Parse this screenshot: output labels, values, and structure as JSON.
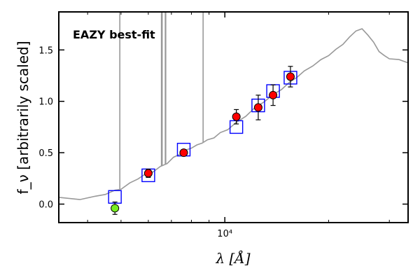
{
  "chart_data": {
    "type": "scatter",
    "title": "",
    "annotation": "EAZY best-fit",
    "annotation_color": "#ff0000",
    "xlabel": "λ [Å]",
    "ylabel": "f_ν [arbitrarily scaled]",
    "xscale": "log",
    "xlim": [
      3300,
      34000
    ],
    "ylim": [
      -0.18,
      1.87
    ],
    "yticks": [
      0.0,
      0.5,
      1.0,
      1.5
    ],
    "ytick_labels": [
      "0.0",
      "0.5",
      "1.0",
      "1.5"
    ],
    "xtick_major": [
      10000
    ],
    "xtick_major_labels": [
      "10⁴"
    ],
    "xtick_minor": [
      4000,
      5000,
      6000,
      7000,
      8000,
      9000,
      20000,
      30000
    ],
    "series": [
      {
        "name": "EAZY template SED",
        "kind": "line",
        "color": "#999999",
        "x": [
          3300,
          3800,
          4200,
          4500,
          4800,
          5000,
          5300,
          5600,
          5900,
          6200,
          6500,
          6800,
          7100,
          7400,
          7700,
          8000,
          8300,
          8600,
          8900,
          9300,
          9700,
          10200,
          10800,
          11500,
          12200,
          13000,
          13800,
          14600,
          15400,
          16200,
          17000,
          18000,
          19000,
          20000,
          21000,
          22000,
          23000,
          24000,
          25000,
          26000,
          27000,
          28000,
          29000,
          30000,
          32000,
          34000
        ],
        "y": [
          0.06,
          0.05,
          0.07,
          0.1,
          0.13,
          0.15,
          0.2,
          0.25,
          0.29,
          0.32,
          0.36,
          0.4,
          0.45,
          0.49,
          0.52,
          0.55,
          0.57,
          0.6,
          0.62,
          0.65,
          0.69,
          0.73,
          0.79,
          0.86,
          0.93,
          1.0,
          1.06,
          1.12,
          1.18,
          1.24,
          1.29,
          1.35,
          1.4,
          1.45,
          1.5,
          1.56,
          1.62,
          1.69,
          1.7,
          1.65,
          1.57,
          1.49,
          1.44,
          1.42,
          1.4,
          1.38
        ]
      },
      {
        "name": "Emission lines",
        "kind": "spikes",
        "color": "#999999",
        "x": [
          4960,
          6550,
          6580,
          6720,
          6740,
          8650
        ],
        "y_top": [
          1.87,
          1.87,
          1.87,
          1.87,
          1.87,
          1.87
        ]
      },
      {
        "name": "Model photometry",
        "kind": "square",
        "color": "#0000ff",
        "x": [
          4800,
          6000,
          7600,
          10800,
          12500,
          13800,
          15500
        ],
        "y": [
          0.07,
          0.28,
          0.53,
          0.75,
          0.96,
          1.1,
          1.23
        ]
      },
      {
        "name": "Observed photometry",
        "kind": "circle",
        "color": "#ff0000",
        "x": [
          6000,
          7600,
          10800,
          12500,
          13800,
          15500
        ],
        "y": [
          0.3,
          0.5,
          0.85,
          0.94,
          1.06,
          1.24
        ],
        "yerr": [
          0.04,
          0.03,
          0.07,
          0.12,
          0.1,
          0.1
        ]
      },
      {
        "name": "Non-detection",
        "kind": "circle",
        "color": "#77ee22",
        "x": [
          4800
        ],
        "y": [
          -0.04
        ],
        "yerr": [
          0.06
        ]
      }
    ]
  }
}
